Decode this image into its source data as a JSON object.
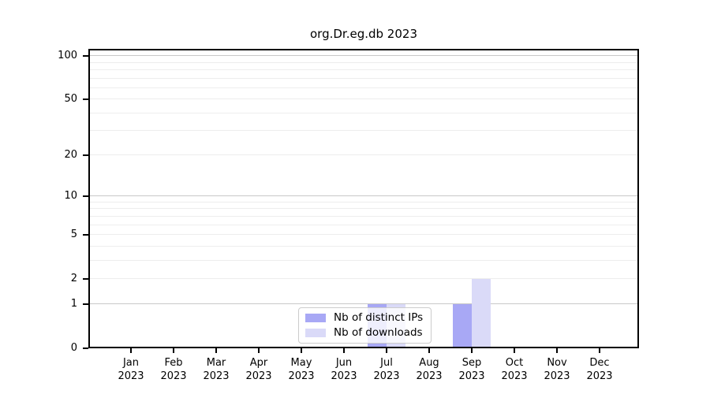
{
  "title": "org.Dr.eg.db 2023",
  "chart_data": {
    "type": "bar",
    "title": "org.Dr.eg.db 2023",
    "categories": [
      "Jan 2023",
      "Feb 2023",
      "Mar 2023",
      "Apr 2023",
      "May 2023",
      "Jun 2023",
      "Jul 2023",
      "Aug 2023",
      "Sep 2023",
      "Oct 2023",
      "Nov 2023",
      "Dec 2023"
    ],
    "series": [
      {
        "name": "Nb of distinct IPs",
        "key": "distinct-ips",
        "color": "#a8a8f5",
        "values": [
          0,
          0,
          0,
          0,
          0,
          0,
          1,
          0,
          1,
          0,
          0,
          0
        ]
      },
      {
        "name": "Nb of downloads",
        "key": "downloads",
        "color": "#dadaf8",
        "values": [
          0,
          0,
          0,
          0,
          0,
          0,
          1,
          0,
          2,
          0,
          0,
          0
        ]
      }
    ],
    "xlabel": "",
    "ylabel": "",
    "yscale": "log1p",
    "yticks": [
      0,
      1,
      2,
      5,
      10,
      20,
      50,
      100
    ],
    "ylim": [
      0,
      112
    ],
    "grid": {
      "orientation": "horizontal",
      "major_values": [
        1,
        10,
        100
      ],
      "minor_values": [
        2,
        3,
        4,
        5,
        6,
        7,
        8,
        9,
        20,
        30,
        40,
        50,
        60,
        70,
        80,
        90
      ]
    },
    "legend_position": "lower center"
  },
  "colors": {
    "distinct_ips": "#a8a8f5",
    "downloads": "#dadaf8",
    "grid_major": "#c8c8c8",
    "grid_minor": "#ededed",
    "spine": "#000000",
    "legend_border": "#cccccc",
    "text": "#000000",
    "background": "#ffffff"
  }
}
